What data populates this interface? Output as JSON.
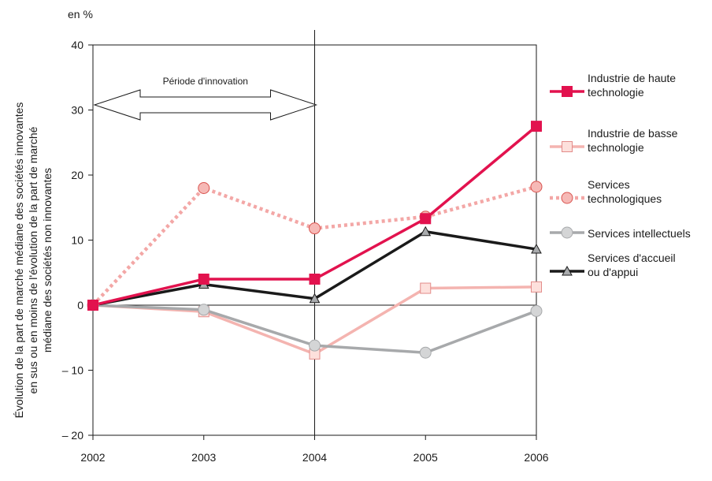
{
  "unit_label": "en %",
  "chart_data": {
    "type": "line",
    "ylabel": "Évolution de la part de marché médiane des sociétés innovantes\nen sus ou en moins de l'évolution de la part de marché\nmédiane des sociétés non innovantes",
    "xlabel": "",
    "x": [
      "2002",
      "2003",
      "2004",
      "2005",
      "2006"
    ],
    "ylim": [
      -20,
      40
    ],
    "yticks": [
      40,
      30,
      20,
      10,
      0,
      -10,
      -20
    ],
    "ytick_labels": [
      "40",
      "30",
      "20",
      "10",
      "0",
      "– 10",
      "– 20"
    ],
    "reference_line_x": "2004",
    "annotation": "Période d'innovation",
    "legend_position": "right",
    "series": [
      {
        "name": "Industrie de haute\ntechnologie",
        "color": "#e2124e",
        "marker": "square-filled",
        "dash": "solid",
        "values": [
          0,
          4,
          4,
          13.3,
          27.5
        ]
      },
      {
        "name": "Industrie de basse\ntechnologie",
        "color": "#f4b4b0",
        "marker": "square-open",
        "dash": "solid",
        "values": [
          0,
          -1,
          -7.5,
          2.6,
          2.8
        ]
      },
      {
        "name": "Services\ntechnologiques",
        "color": "#f3a7a6",
        "marker": "circle",
        "dash": "dotted",
        "values": [
          0,
          18,
          11.8,
          13.6,
          18.2
        ]
      },
      {
        "name": "Services intellectuels",
        "color": "#a7a9ab",
        "marker": "circle-gray",
        "dash": "solid",
        "values": [
          0,
          -0.7,
          -6.2,
          -7.3,
          -0.9
        ]
      },
      {
        "name": "Services d'accueil\nou d'appui",
        "color": "#1a1a1a",
        "marker": "triangle",
        "dash": "solid",
        "values": [
          0,
          3.2,
          1,
          11.3,
          8.6
        ]
      }
    ]
  }
}
